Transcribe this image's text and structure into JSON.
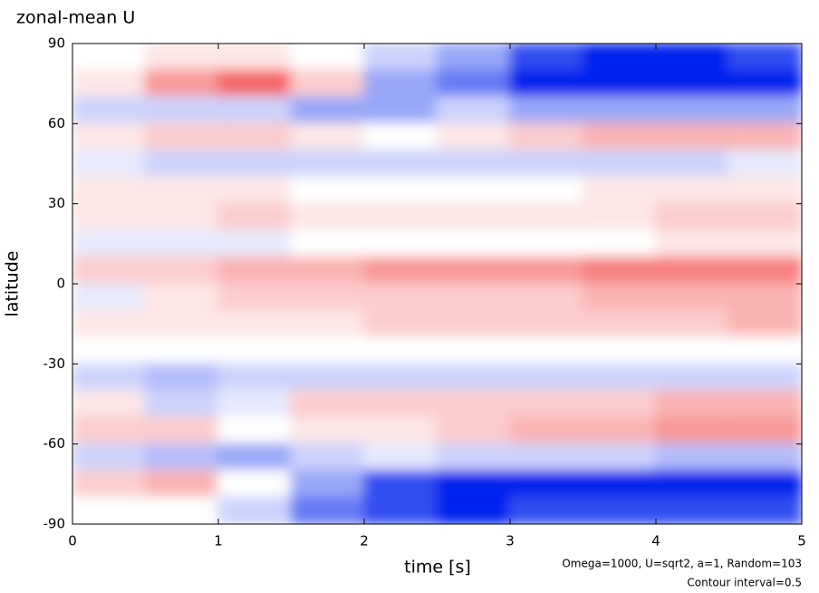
{
  "chart_data": {
    "type": "heatmap",
    "title": "zonal-mean U",
    "x_label": "time [s]",
    "y_label": "latitude",
    "annotations": [
      "Omega=1000, U=sqrt2, a=1, Random=103",
      "Contour interval=0.5"
    ],
    "x": [
      0.25,
      0.75,
      1.25,
      1.75,
      2.25,
      2.75,
      3.25,
      3.75,
      4.25,
      4.75
    ],
    "y": [
      85,
      75,
      65,
      55,
      45,
      35,
      25,
      15,
      5,
      -5,
      -15,
      -25,
      -35,
      -45,
      -55,
      -65,
      -75,
      -85
    ],
    "z": [
      [
        0,
        0.5,
        0.5,
        0,
        -1,
        -2,
        -4,
        -5,
        -5,
        -4
      ],
      [
        0.5,
        2,
        3,
        1,
        -2,
        -3,
        -5,
        -5,
        -5,
        -5
      ],
      [
        -1,
        -1,
        -1,
        -2,
        -2,
        -1,
        -2,
        -2,
        -2,
        -2
      ],
      [
        0.5,
        1,
        1,
        0.5,
        0,
        0.5,
        1,
        1.5,
        1.5,
        1.5
      ],
      [
        -0.5,
        -1,
        -1,
        -1,
        -1,
        -1,
        -1,
        -1,
        -1,
        -0.5
      ],
      [
        0.5,
        0.5,
        0.5,
        0,
        0,
        0,
        0,
        0.5,
        0.5,
        0.5
      ],
      [
        0.5,
        0.5,
        1,
        0.5,
        0.5,
        0.5,
        0.5,
        0.5,
        1,
        1
      ],
      [
        -0.5,
        -0.5,
        -0.5,
        0,
        0,
        0,
        0,
        0,
        0.5,
        0.5
      ],
      [
        1,
        1,
        1.5,
        1.5,
        2,
        2,
        2,
        2.5,
        2.5,
        2.5
      ],
      [
        -0.5,
        0.5,
        1,
        1,
        1,
        1,
        1,
        1.5,
        1.5,
        1.5
      ],
      [
        0.5,
        0.5,
        0.5,
        0.5,
        1,
        1,
        1,
        1,
        1,
        1.5
      ],
      [
        0,
        0,
        0,
        0,
        0,
        0,
        0,
        0,
        0,
        0
      ],
      [
        -1,
        -1.5,
        -1,
        -1,
        -1,
        -1,
        -1,
        -1,
        -1,
        -1
      ],
      [
        0.5,
        -1,
        -0.5,
        1,
        1,
        1,
        1,
        1,
        1.5,
        1.5
      ],
      [
        1,
        1,
        0,
        0.5,
        0.5,
        1,
        1.5,
        1.5,
        2,
        2
      ],
      [
        -1,
        -1.5,
        -2,
        -1,
        -0.5,
        -1,
        -1,
        -1,
        -1.5,
        -1.5
      ],
      [
        1,
        1.5,
        0,
        -2,
        -4,
        -5,
        -5,
        -5,
        -5,
        -5
      ],
      [
        0,
        0,
        -1,
        -3,
        -4,
        -5,
        -4,
        -4,
        -4,
        -4
      ]
    ],
    "clim": [
      -5,
      5
    ],
    "colors": {
      "negative": "#0022ee",
      "zero": "#ffffff",
      "positive": "#ee0000"
    },
    "xlim": [
      0,
      5
    ],
    "ylim": [
      -90,
      90
    ],
    "xticks": [
      0,
      1,
      2,
      3,
      4,
      5
    ],
    "yticks": [
      -90,
      -60,
      -30,
      0,
      30,
      60,
      90
    ]
  }
}
